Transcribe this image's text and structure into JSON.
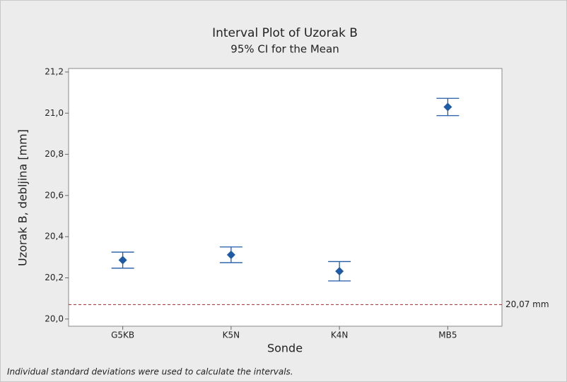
{
  "chart_data": {
    "type": "interval",
    "title": "Interval Plot of Uzorak B",
    "subtitle": "95% CI for the Mean",
    "x_label": "Sonde",
    "y_label": "Uzorak B, debljina [mm]",
    "footnote": "Individual standard deviations were used to calculate the intervals.",
    "categories": [
      "G5KB",
      "K5N",
      "K4N",
      "MB5"
    ],
    "values": [
      20.286,
      20.312,
      20.232,
      21.03
    ],
    "errors": [
      0.039,
      0.038,
      0.047,
      0.042
    ],
    "color": "#1f5aa6",
    "ylim": [
      19.965,
      21.217
    ],
    "yticks": [
      {
        "value": 20.0,
        "label": "20,0"
      },
      {
        "value": 20.2,
        "label": "20,2"
      },
      {
        "value": 20.4,
        "label": "20,4"
      },
      {
        "value": 20.6,
        "label": "20,6"
      },
      {
        "value": 20.8,
        "label": "20,8"
      },
      {
        "value": 21.0,
        "label": "21,0"
      },
      {
        "value": 21.2,
        "label": "21,2"
      }
    ],
    "reference_line": {
      "value": 20.07,
      "label": "20,07 mm",
      "color": "#a3262a"
    }
  }
}
